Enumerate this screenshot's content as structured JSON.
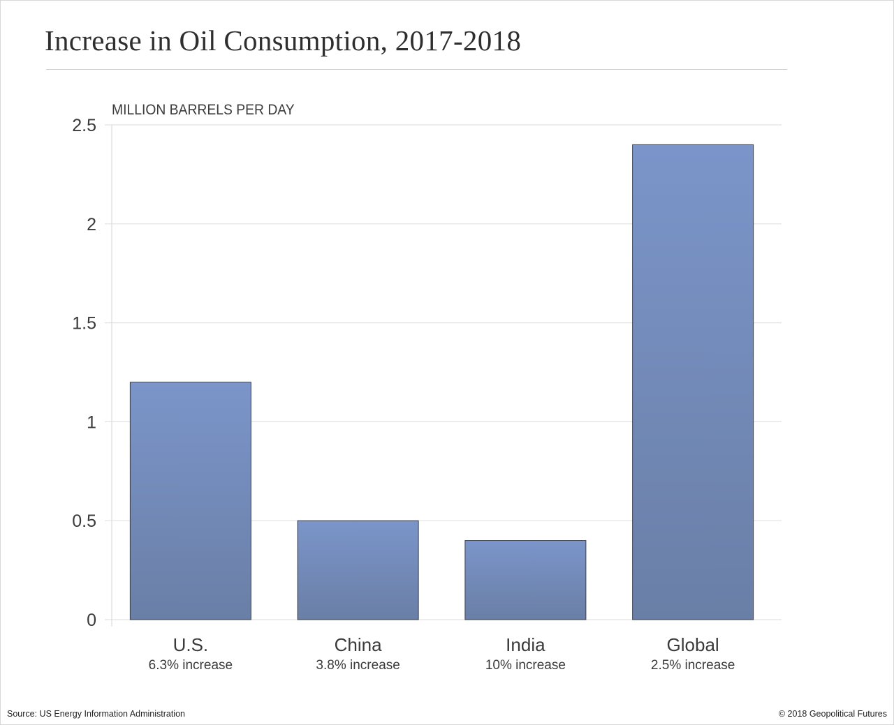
{
  "chart_data": {
    "type": "bar",
    "title": "Increase in Oil Consumption, 2017-2018",
    "ylabel": "MILLION BARRELS PER DAY",
    "xlabel": "",
    "categories": [
      "U.S.",
      "China",
      "India",
      "Global"
    ],
    "category_notes": [
      "6.3% increase",
      "3.8% increase",
      "10% increase",
      "2.5% increase"
    ],
    "values": [
      1.2,
      0.5,
      0.4,
      2.4
    ],
    "ylim": [
      0,
      2.5
    ],
    "yticks": [
      0,
      0.5,
      1,
      1.5,
      2,
      2.5
    ],
    "ytick_labels": [
      "0",
      "0.5",
      "1",
      "1.5",
      "2",
      "2.5"
    ],
    "grid": true,
    "legend": "none",
    "bar_color_top": "#7b95ca",
    "bar_color_bottom": "#6a7fa6",
    "bar_edge_color": "#3a3f4a"
  },
  "footer": {
    "source": "Source: US Energy Information Administration",
    "copyright": "© 2018 Geopolitical Futures"
  }
}
